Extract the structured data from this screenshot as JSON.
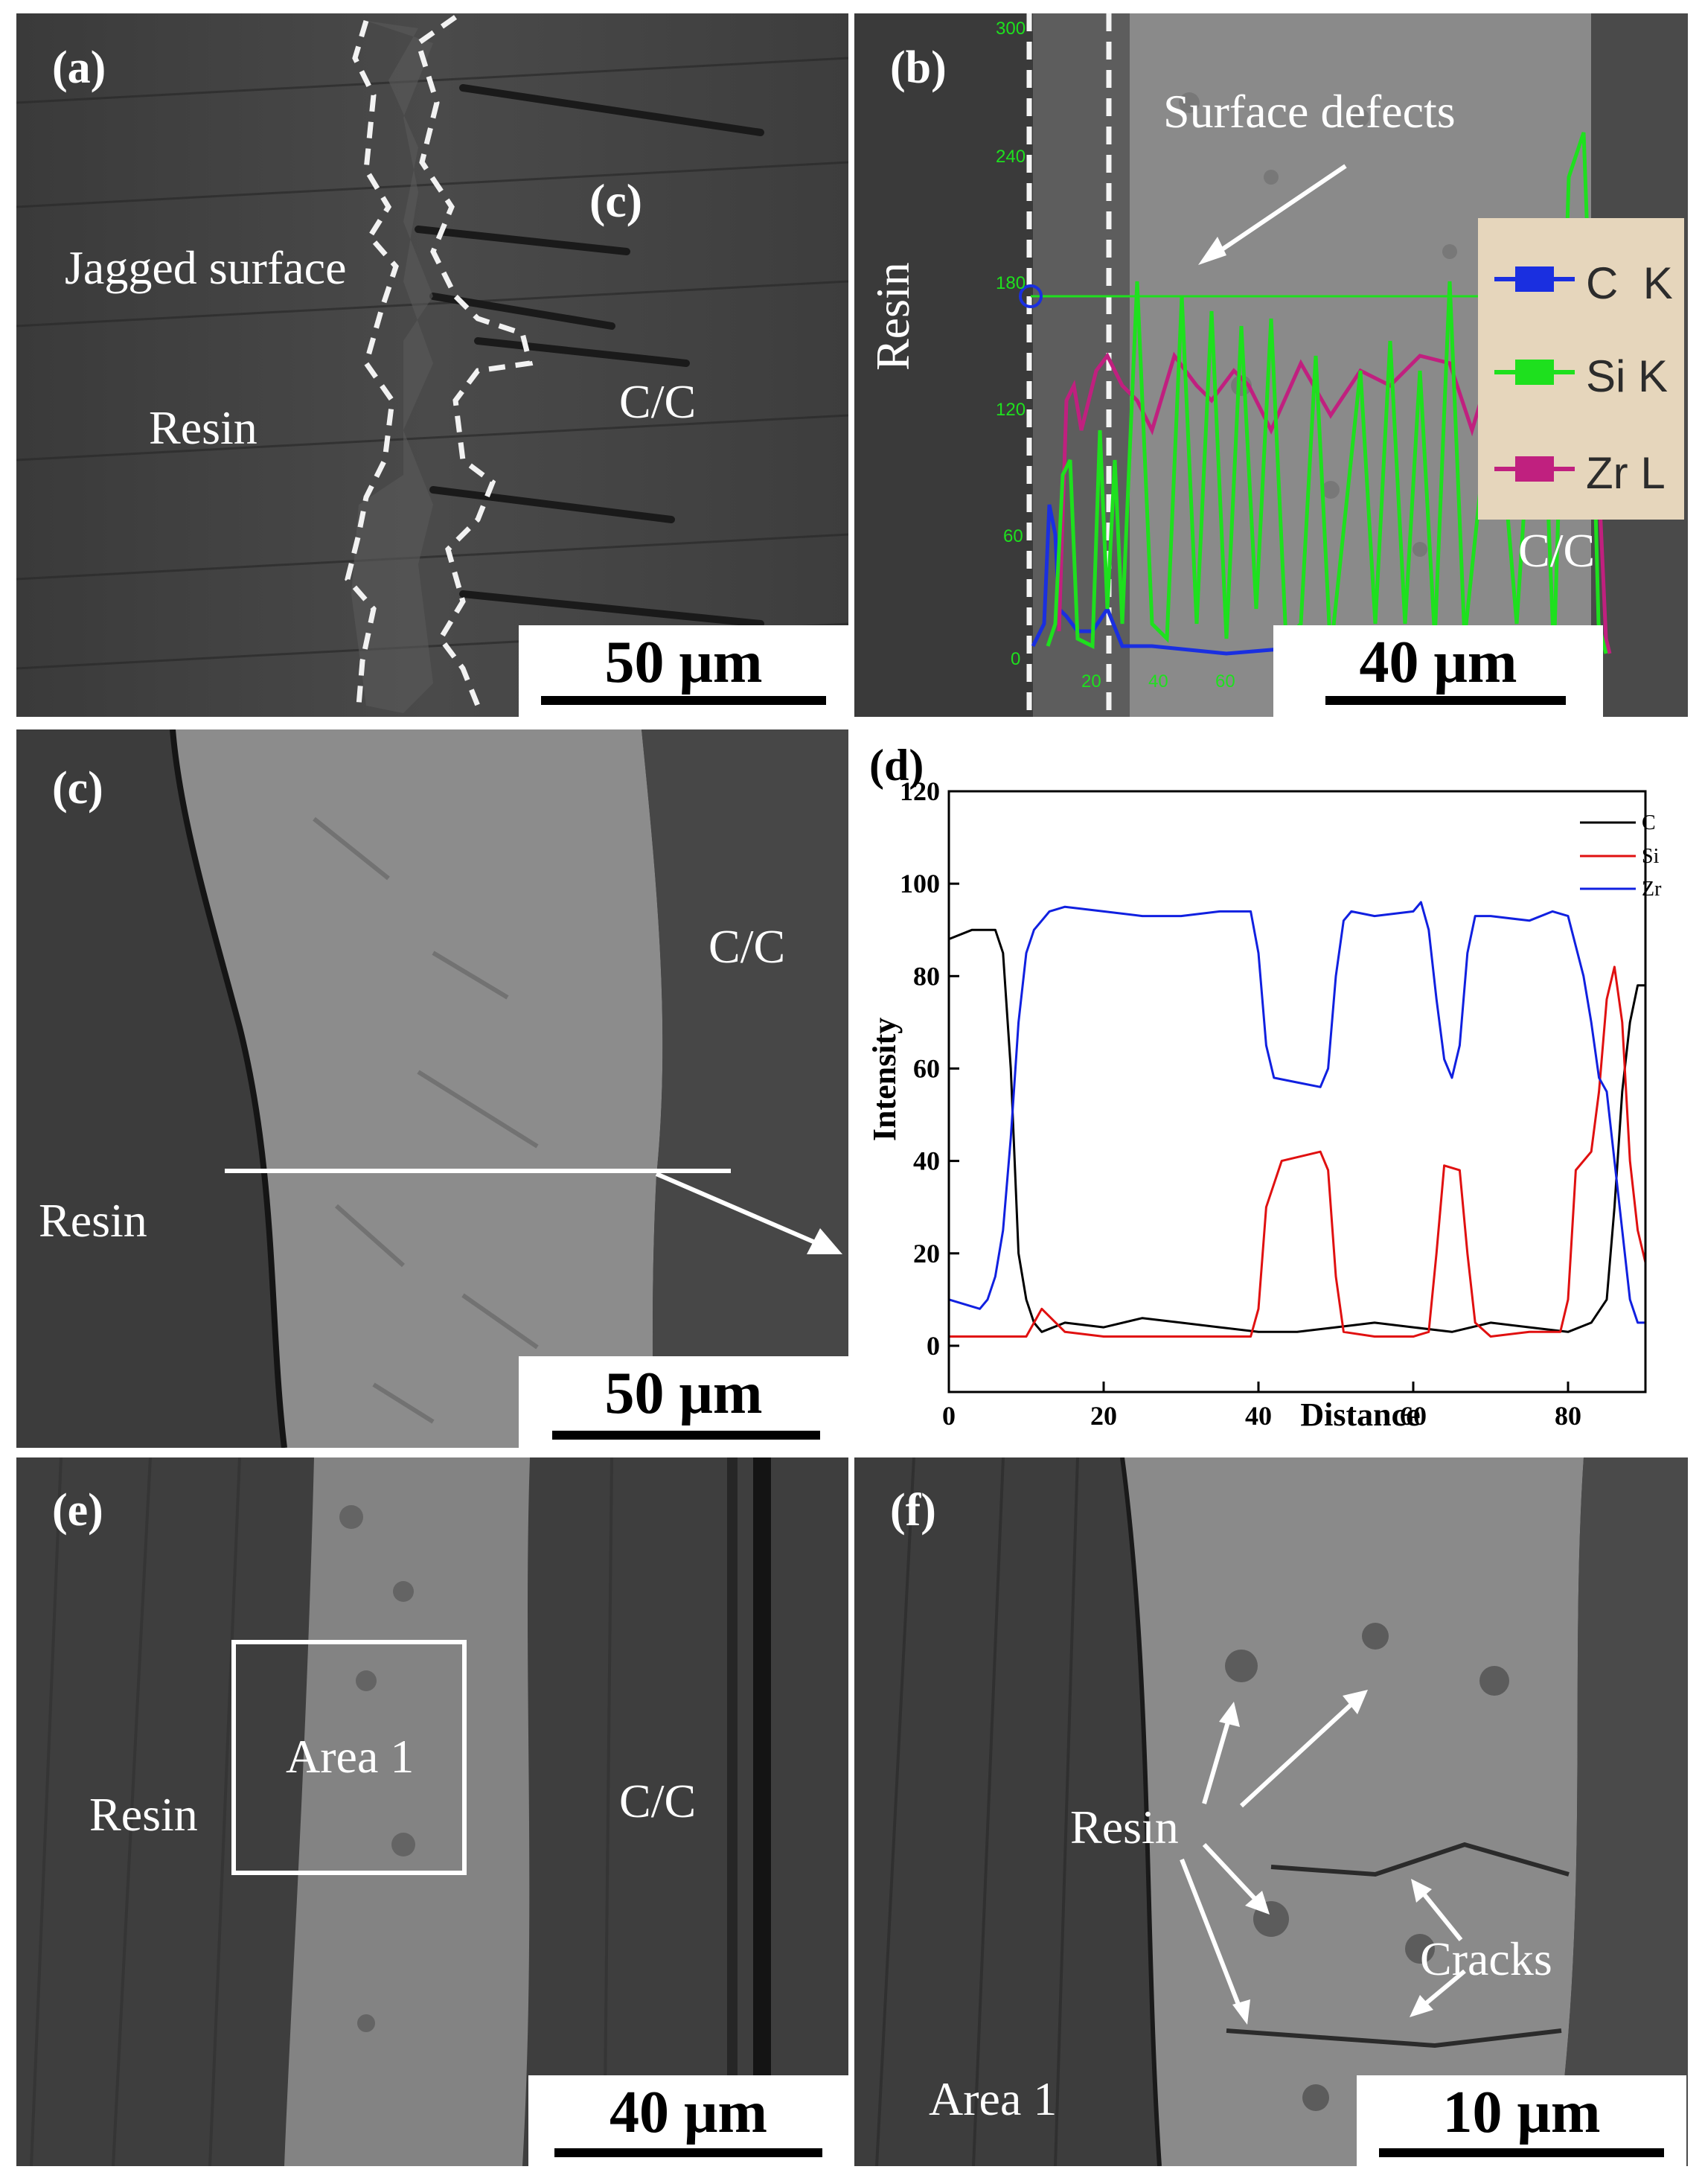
{
  "panels": {
    "a": {
      "tag": "(a)",
      "labels": {
        "jagged": "Jagged surface",
        "c_ref": "(c)",
        "resin": "Resin",
        "cc": "C/C"
      },
      "scalebar": "50 μm"
    },
    "b": {
      "tag": "(b)",
      "labels": {
        "defects": "Surface defects",
        "resin": "Resin",
        "cc": "C/C"
      },
      "overlay_ticks": [
        "300",
        "240",
        "180",
        "120",
        "60",
        "0",
        "20",
        "40",
        "60"
      ],
      "legend": [
        {
          "element": "C",
          "line": "K",
          "color": "#1a2fe0"
        },
        {
          "element": "Si",
          "line": "K",
          "color": "#1ee01e"
        },
        {
          "element": "Zr",
          "line": "L",
          "color": "#c0207f"
        }
      ],
      "scalebar": "40 μm"
    },
    "c": {
      "tag": "(c)",
      "labels": {
        "cc": "C/C",
        "resin": "Resin"
      },
      "scalebar": "50 μm"
    },
    "d": {
      "tag": "(d)",
      "scalebar": ""
    },
    "e": {
      "tag": "(e)",
      "labels": {
        "area": "Area 1",
        "resin": "Resin",
        "cc": "C/C"
      },
      "scalebar": "40 μm"
    },
    "f": {
      "tag": "(f)",
      "labels": {
        "resin": "Resin",
        "cracks": "Cracks",
        "area": "Area 1"
      },
      "scalebar": "10 μm"
    }
  },
  "chart_data": {
    "type": "line",
    "title": "",
    "xlabel": "Distance",
    "ylabel": "Intensity",
    "xlim": [
      0,
      90
    ],
    "ylim": [
      -10,
      120
    ],
    "xticks": [
      "0",
      "20",
      "40",
      "60",
      "80"
    ],
    "yticks": [
      "0",
      "20",
      "40",
      "60",
      "80",
      "100",
      "120"
    ],
    "legend_position": "top-right",
    "series": [
      {
        "name": "C",
        "color": "#000000",
        "x": [
          0,
          3,
          6,
          7,
          8,
          9,
          10,
          11,
          12,
          15,
          20,
          25,
          30,
          35,
          40,
          45,
          50,
          55,
          60,
          65,
          70,
          75,
          80,
          83,
          85,
          86,
          87,
          88,
          89,
          90
        ],
        "y": [
          88,
          90,
          90,
          85,
          60,
          20,
          10,
          5,
          3,
          5,
          4,
          6,
          5,
          4,
          3,
          3,
          4,
          5,
          4,
          3,
          5,
          4,
          3,
          5,
          10,
          30,
          55,
          70,
          78,
          78
        ]
      },
      {
        "name": "Si",
        "color": "#e01010",
        "x": [
          0,
          5,
          10,
          12,
          15,
          20,
          30,
          39,
          40,
          41,
          43,
          48,
          49,
          50,
          51,
          55,
          60,
          62,
          63,
          64,
          66,
          67,
          68,
          70,
          75,
          79,
          80,
          81,
          83,
          84,
          85,
          86,
          87,
          88,
          89,
          90
        ],
        "y": [
          2,
          2,
          2,
          8,
          3,
          2,
          2,
          2,
          8,
          30,
          40,
          42,
          38,
          15,
          3,
          2,
          2,
          3,
          20,
          39,
          38,
          20,
          5,
          2,
          3,
          3,
          10,
          38,
          42,
          55,
          75,
          82,
          70,
          40,
          25,
          18
        ]
      },
      {
        "name": "Zr",
        "color": "#1020e0",
        "x": [
          0,
          4,
          5,
          6,
          7,
          8,
          9,
          10,
          11,
          12,
          13,
          15,
          20,
          25,
          30,
          35,
          39,
          40,
          41,
          42,
          45,
          48,
          49,
          50,
          51,
          52,
          55,
          60,
          61,
          62,
          63,
          64,
          65,
          66,
          67,
          68,
          70,
          75,
          78,
          80,
          82,
          83,
          84,
          85,
          86,
          87,
          88,
          89,
          90
        ],
        "y": [
          10,
          8,
          10,
          15,
          25,
          45,
          70,
          85,
          90,
          92,
          94,
          95,
          94,
          93,
          93,
          94,
          94,
          85,
          65,
          58,
          57,
          56,
          60,
          80,
          92,
          94,
          93,
          94,
          96,
          90,
          75,
          62,
          58,
          65,
          85,
          93,
          93,
          92,
          94,
          93,
          80,
          70,
          58,
          55,
          40,
          25,
          10,
          5,
          5
        ]
      }
    ]
  }
}
